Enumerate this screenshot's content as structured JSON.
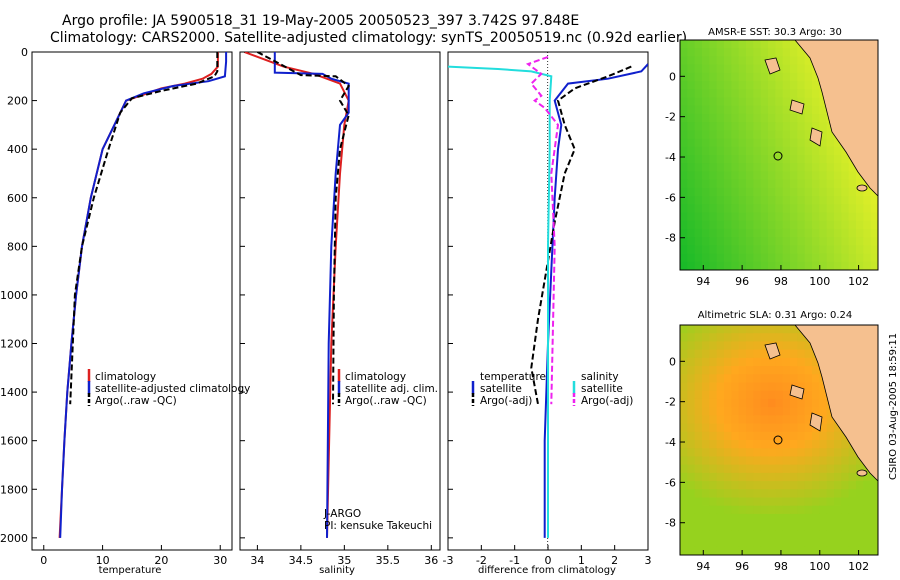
{
  "title": {
    "line1": "Argo profile: JA 5900518_31 19-May-2005 20050523_397 3.742S 97.848E",
    "line2": "Climatology: CARS2000. Satellite-adjusted climatology: synTS_20050519.nc (0.92d earlier)"
  },
  "colors": {
    "climatology": "#dd2020",
    "satellite": "#1020cc",
    "argo": "#000000",
    "sal_satellite": "#22dddd",
    "sal_argo": "#ee22ee"
  },
  "chart_data": [
    {
      "type": "line",
      "xlabel": "temperature",
      "ylabel": "",
      "xlim": [
        -2,
        32
      ],
      "ylim": [
        2050,
        0
      ],
      "x_ticks": [
        0,
        10,
        20,
        30
      ],
      "y_ticks": [
        0,
        200,
        400,
        600,
        800,
        1000,
        1200,
        1400,
        1600,
        1800,
        2000
      ],
      "legend": [
        "climatology",
        "satellite-adjusted climatology",
        "Argo(..raw -QC)"
      ],
      "series": [
        {
          "name": "climatology",
          "style": "solid",
          "color": "#dd2020",
          "x": [
            29.6,
            29.6,
            28.5,
            27,
            24,
            20,
            17,
            14,
            12,
            10,
            8,
            6.5,
            5.5,
            4.7,
            4,
            3.5,
            3.1,
            2.7
          ],
          "y": [
            0,
            60,
            90,
            110,
            130,
            150,
            175,
            200,
            300,
            400,
            600,
            800,
            1000,
            1200,
            1400,
            1600,
            1800,
            2000
          ]
        },
        {
          "name": "satellite-adjusted climatology",
          "style": "solid",
          "color": "#1020cc",
          "x": [
            31,
            31,
            30.8,
            28,
            22,
            17,
            14,
            12,
            10,
            8,
            6.5,
            5.5,
            4.7,
            4,
            3.5,
            3.1,
            2.8
          ],
          "y": [
            0,
            40,
            100,
            120,
            140,
            170,
            200,
            300,
            400,
            600,
            800,
            1000,
            1200,
            1400,
            1600,
            1800,
            2000
          ]
        },
        {
          "name": "Argo(..raw -QC)",
          "style": "dashed",
          "color": "#000000",
          "x": [
            29.5,
            29.5,
            29,
            26,
            20,
            15,
            13,
            11,
            8.5,
            6.5,
            5.3,
            4.5
          ],
          "y": [
            0,
            80,
            100,
            130,
            160,
            190,
            250,
            400,
            600,
            800,
            1000,
            1450
          ]
        }
      ]
    },
    {
      "type": "line",
      "xlabel": "salinity",
      "ylabel": "",
      "xlim": [
        33.8,
        36.1
      ],
      "ylim": [
        2050,
        0
      ],
      "x_ticks": [
        34,
        34.5,
        35,
        35.5,
        36
      ],
      "x_tick_labels": [
        "34",
        "34.5",
        "35",
        "35.5",
        "36"
      ],
      "legend": [
        "climatology",
        "satellite adj. clim.",
        "Argo(..raw -QC)"
      ],
      "annotations": [
        "J-ARGO",
        "PI: kensuke Takeuchi"
      ],
      "series": [
        {
          "name": "climatology",
          "style": "solid",
          "color": "#dd2020",
          "x": [
            33.85,
            34.3,
            34.65,
            34.95,
            35.05,
            35.0,
            34.95,
            34.9,
            34.85,
            34.8
          ],
          "y": [
            0,
            60,
            90,
            130,
            200,
            300,
            500,
            800,
            1200,
            2000
          ]
        },
        {
          "name": "satellite adj. clim.",
          "style": "solid",
          "color": "#1020cc",
          "x": [
            34.2,
            34.2,
            34.75,
            34.85,
            35.05,
            35.05,
            34.95,
            34.9,
            34.85,
            34.82,
            34.8
          ],
          "y": [
            0,
            85,
            90,
            110,
            130,
            250,
            300,
            500,
            800,
            1200,
            2000
          ]
        },
        {
          "name": "Argo(..raw -QC)",
          "style": "dashed",
          "color": "#000000",
          "x": [
            34.0,
            34.5,
            34.9,
            35.05,
            34.95,
            35.0,
            35.05,
            34.95,
            34.9,
            34.88,
            34.87
          ],
          "y": [
            0,
            95,
            100,
            140,
            200,
            230,
            260,
            400,
            600,
            1000,
            1450
          ]
        }
      ]
    },
    {
      "type": "line",
      "xlabel": "difference from climatology",
      "ylabel": "",
      "xlim": [
        -3,
        3
      ],
      "ylim": [
        2050,
        0
      ],
      "x_ticks": [
        -3,
        -2,
        -1,
        0,
        1,
        2,
        3
      ],
      "legend_left": {
        "title": "temperature",
        "entries": [
          "satellite",
          "Argo(-adj)"
        ]
      },
      "legend_right": {
        "title": "salinity",
        "entries": [
          "satellite",
          "Argo(-adj)"
        ]
      },
      "series": [
        {
          "name": "temperature satellite",
          "style": "solid",
          "color": "#1020cc",
          "x": [
            3,
            2.8,
            1.8,
            0.6,
            0.2,
            0.4,
            0.3,
            0.2,
            0.1,
            0,
            -0.1,
            -0.1
          ],
          "y": [
            50,
            80,
            110,
            130,
            200,
            300,
            400,
            600,
            900,
            1200,
            1600,
            2000
          ]
        },
        {
          "name": "temperature Argo(-adj)",
          "style": "dashed",
          "color": "#000000",
          "x": [
            2.5,
            1.8,
            0.8,
            0.3,
            0.5,
            0.8,
            0.5,
            0.2,
            -0.3,
            -0.5,
            -0.3
          ],
          "y": [
            60,
            100,
            150,
            200,
            300,
            400,
            500,
            700,
            1100,
            1300,
            1450
          ]
        },
        {
          "name": "salinity satellite",
          "style": "solid",
          "color": "#22dddd",
          "x": [
            -3,
            -1.5,
            -0.5,
            0.1,
            0.05,
            0.05,
            0,
            0
          ],
          "y": [
            60,
            70,
            80,
            100,
            200,
            400,
            800,
            2000
          ]
        },
        {
          "name": "salinity Argo(-adj)",
          "style": "dashed",
          "color": "#ee22ee",
          "x": [
            0,
            -0.6,
            -0.2,
            -0.5,
            -0.2,
            -0.4,
            -0.1,
            0.3,
            0.1,
            0.2,
            0.1
          ],
          "y": [
            20,
            50,
            90,
            130,
            180,
            200,
            230,
            300,
            500,
            800,
            1450
          ]
        }
      ]
    },
    {
      "type": "heatmap",
      "title": "AMSR-E SST: 30.3 Argo: 30",
      "x_ticks": [
        94,
        96,
        98,
        100,
        102
      ],
      "y_ticks": [
        0,
        -2,
        -4,
        -6,
        -8
      ],
      "xlim": [
        92.8,
        103
      ],
      "ylim": [
        -9.6,
        1.8
      ],
      "argo_marker": {
        "lon": 97.848,
        "lat": -3.742
      }
    },
    {
      "type": "heatmap",
      "title": "Altimetric SLA: 0.31 Argo: 0.24",
      "x_ticks": [
        94,
        96,
        98,
        100,
        102
      ],
      "y_ticks": [
        0,
        -2,
        -4,
        -6,
        -8
      ],
      "xlim": [
        92.8,
        103
      ],
      "ylim": [
        -9.6,
        1.8
      ],
      "argo_marker": {
        "lon": 97.848,
        "lat": -3.742
      }
    }
  ],
  "side_text": "CSIRO 03-Aug-2005 18:59:11"
}
